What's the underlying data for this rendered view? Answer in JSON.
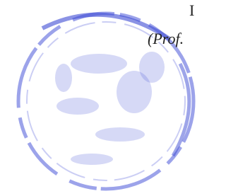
{
  "document": {
    "lines": [
      "I",
      "(Prof."
    ]
  }
}
